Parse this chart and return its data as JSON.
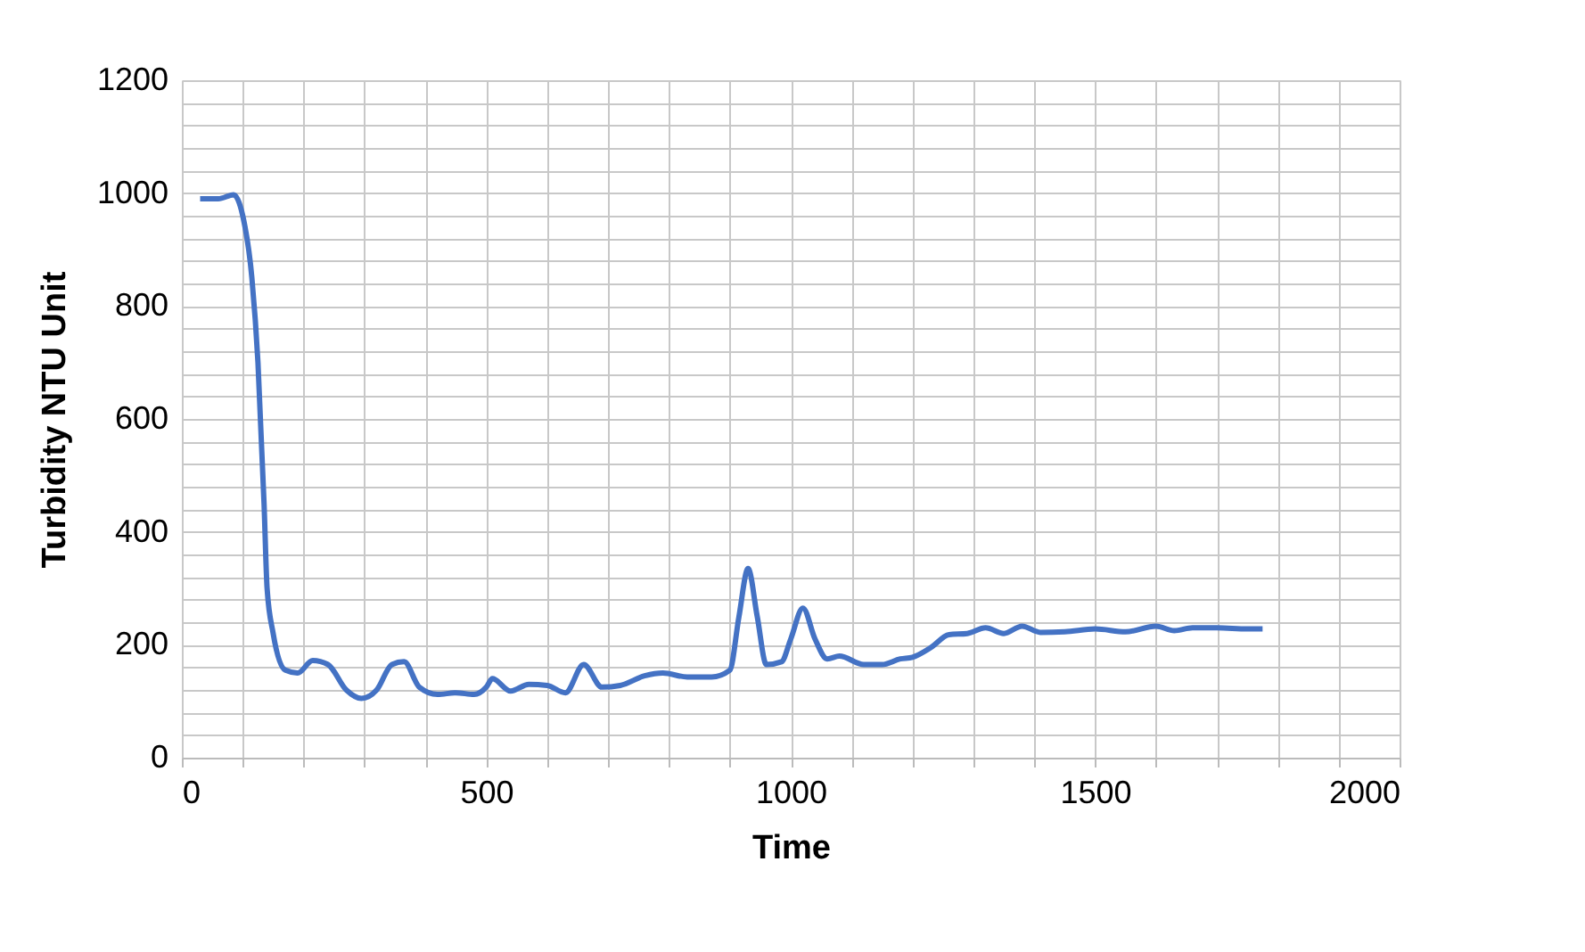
{
  "chart_data": {
    "type": "line",
    "xlabel": "Time",
    "ylabel": "Turbidity NTU Unit",
    "x": [
      30,
      60,
      85,
      100,
      115,
      125,
      135,
      140,
      150,
      170,
      190,
      215,
      240,
      270,
      295,
      320,
      345,
      365,
      390,
      420,
      450,
      480,
      500,
      510,
      540,
      570,
      600,
      630,
      660,
      690,
      720,
      760,
      790,
      830,
      870,
      900,
      915,
      930,
      945,
      960,
      985,
      1000,
      1020,
      1040,
      1060,
      1080,
      1120,
      1150,
      1180,
      1200,
      1230,
      1260,
      1290,
      1320,
      1350,
      1380,
      1410,
      1450,
      1500,
      1550,
      1600,
      1630,
      1660,
      1700,
      1750,
      1775
    ],
    "series": [
      {
        "color": "#4472c4",
        "values": [
          990,
          990,
          997,
          960,
          850,
          700,
          450,
          300,
          220,
          155,
          150,
          172,
          165,
          120,
          105,
          120,
          165,
          170,
          125,
          112,
          115,
          112,
          125,
          140,
          118,
          130,
          128,
          115,
          165,
          125,
          128,
          145,
          150,
          143,
          143,
          155,
          250,
          335,
          250,
          165,
          170,
          210,
          265,
          210,
          175,
          180,
          165,
          165,
          175,
          178,
          195,
          218,
          220,
          230,
          220,
          233,
          222,
          223,
          228,
          223,
          233,
          225,
          230,
          230,
          228,
          228
        ]
      }
    ],
    "xlim": [
      0,
      2000
    ],
    "xticks": [
      0,
      {
        "value": 100,
        "label": null
      },
      {
        "value": 200,
        "label": null
      },
      {
        "value": 300,
        "label": null
      },
      {
        "value": 400,
        "label": null
      },
      500,
      {
        "value": 600,
        "label": null
      },
      {
        "value": 700,
        "label": null
      },
      {
        "value": 800,
        "label": null
      },
      {
        "value": 900,
        "label": null
      },
      1000,
      {
        "value": 1100,
        "label": null
      },
      {
        "value": 1200,
        "label": null
      },
      {
        "value": 1300,
        "label": null
      },
      {
        "value": 1400,
        "label": null
      },
      1500,
      {
        "value": 1600,
        "label": null
      },
      {
        "value": 1700,
        "label": null
      },
      {
        "value": 1800,
        "label": null
      },
      {
        "value": 1900,
        "label": null
      },
      2000
    ],
    "ylim": [
      0,
      1200
    ],
    "yticks": [
      0,
      {
        "value": 40,
        "label": null
      },
      {
        "value": 80,
        "label": null
      },
      {
        "value": 120,
        "label": null
      },
      {
        "value": 160,
        "label": null
      },
      200,
      {
        "value": 240,
        "label": null
      },
      {
        "value": 280,
        "label": null
      },
      {
        "value": 320,
        "label": null
      },
      {
        "value": 360,
        "label": null
      },
      400,
      {
        "value": 440,
        "label": null
      },
      {
        "value": 480,
        "label": null
      },
      {
        "value": 520,
        "label": null
      },
      {
        "value": 560,
        "label": null
      },
      600,
      {
        "value": 640,
        "label": null
      },
      {
        "value": 680,
        "label": null
      },
      {
        "value": 720,
        "label": null
      },
      {
        "value": 760,
        "label": null
      },
      800,
      {
        "value": 840,
        "label": null
      },
      {
        "value": 880,
        "label": null
      },
      {
        "value": 920,
        "label": null
      },
      {
        "value": 960,
        "label": null
      },
      1000,
      {
        "value": 1040,
        "label": null
      },
      {
        "value": 1080,
        "label": null
      },
      {
        "value": 1120,
        "label": null
      },
      {
        "value": 1160,
        "label": null
      },
      1200
    ],
    "grid": true,
    "marker": "none",
    "line_style": "solid"
  }
}
